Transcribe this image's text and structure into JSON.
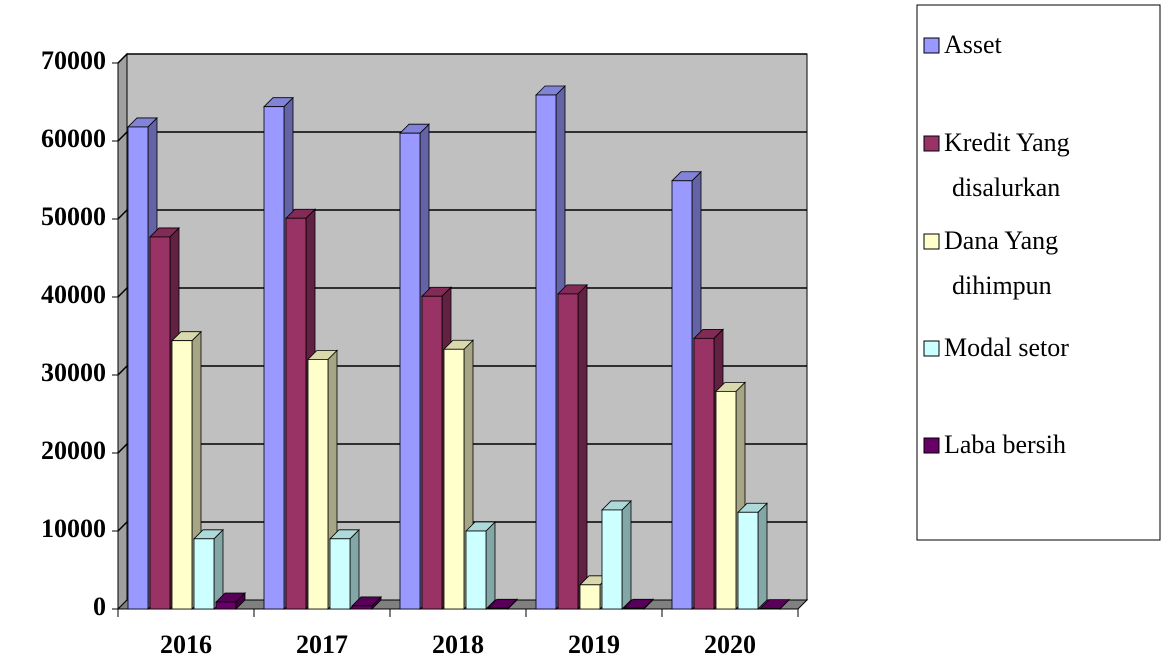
{
  "chart_data": {
    "type": "bar3d",
    "categories": [
      "2016",
      "2017",
      "2018",
      "2019",
      "2020"
    ],
    "series": [
      {
        "name": "Asset",
        "color": "#9999ff",
        "values": [
          61800,
          64400,
          61000,
          65900,
          54900
        ]
      },
      {
        "name": "Kredit Yang disalurkan",
        "color": "#993366",
        "values": [
          47700,
          50100,
          40100,
          40400,
          34700
        ]
      },
      {
        "name": "Dana Yang dihimpun",
        "color": "#ffffcc",
        "values": [
          34400,
          32000,
          33300,
          3100,
          27900
        ]
      },
      {
        "name": "Modal setor",
        "color": "#ccffff",
        "values": [
          9000,
          9000,
          10000,
          12700,
          12400
        ]
      },
      {
        "name": "Laba bersih",
        "color": "#660066",
        "values": [
          900,
          400,
          100,
          100,
          50
        ]
      }
    ],
    "ylim": [
      0,
      70000
    ],
    "yticks": [
      0,
      10000,
      20000,
      30000,
      40000,
      50000,
      60000,
      70000
    ],
    "grid": true,
    "legend": "right"
  }
}
